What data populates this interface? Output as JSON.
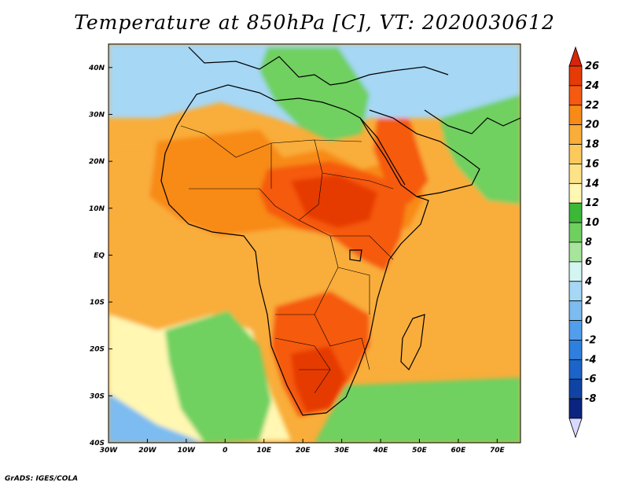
{
  "title": "Temperature at 850hPa [C], VT: 2020030612",
  "credit": "GrADS: IGES/COLA",
  "map": {
    "region": "Africa",
    "lon_range": [
      -30,
      76
    ],
    "lat_range": [
      -40,
      45
    ],
    "x_ticks": [
      {
        "lon": -30,
        "label": "30W"
      },
      {
        "lon": -20,
        "label": "20W"
      },
      {
        "lon": -10,
        "label": "10W"
      },
      {
        "lon": 0,
        "label": "0"
      },
      {
        "lon": 10,
        "label": "10E"
      },
      {
        "lon": 20,
        "label": "20E"
      },
      {
        "lon": 30,
        "label": "30E"
      },
      {
        "lon": 40,
        "label": "40E"
      },
      {
        "lon": 50,
        "label": "50E"
      },
      {
        "lon": 60,
        "label": "60E"
      },
      {
        "lon": 70,
        "label": "70E"
      }
    ],
    "y_ticks": [
      {
        "lat": 40,
        "label": "40N"
      },
      {
        "lat": 30,
        "label": "30N"
      },
      {
        "lat": 20,
        "label": "20N"
      },
      {
        "lat": 10,
        "label": "10N"
      },
      {
        "lat": 0,
        "label": "EQ"
      },
      {
        "lat": -10,
        "label": "10S"
      },
      {
        "lat": -20,
        "label": "20S"
      },
      {
        "lat": -30,
        "label": "30S"
      },
      {
        "lat": -40,
        "label": "40S"
      }
    ]
  },
  "colorbar": {
    "levels": [
      {
        "label": "26",
        "color": "#e63b06"
      },
      {
        "label": "24",
        "color": "#f55a10"
      },
      {
        "label": "22",
        "color": "#f88a18"
      },
      {
        "label": "20",
        "color": "#f9ad3a"
      },
      {
        "label": "18",
        "color": "#fbc95c"
      },
      {
        "label": "16",
        "color": "#fde287"
      },
      {
        "label": "14",
        "color": "#fff7b2"
      },
      {
        "label": "12",
        "color": "#3cb839"
      },
      {
        "label": "10",
        "color": "#6fd060"
      },
      {
        "label": "8",
        "color": "#a6e59a"
      },
      {
        "label": "6",
        "color": "#d4f6f2"
      },
      {
        "label": "4",
        "color": "#a6d7f5"
      },
      {
        "label": "2",
        "color": "#7cbcf1"
      },
      {
        "label": "0",
        "color": "#519fea"
      },
      {
        "label": "-2",
        "color": "#2f80de"
      },
      {
        "label": "-4",
        "color": "#1c64c8"
      },
      {
        "label": "-6",
        "color": "#0f44a5"
      },
      {
        "label": "-8",
        "color": "#0a2480"
      }
    ],
    "top_color": "#d8240a",
    "bottom_color": "#d9d9ff"
  },
  "colors": {
    "cold": "#7cbcf1",
    "cool": "#a6d7f5",
    "green": "#6fd060",
    "darkgreen": "#3cb839",
    "paleyellow": "#fff7b2",
    "yellow": "#fde287",
    "lightorange": "#fbc95c",
    "orange": "#f9ad3a",
    "darkorange": "#f88a18",
    "red": "#f55a10",
    "darkred": "#e63b06"
  }
}
